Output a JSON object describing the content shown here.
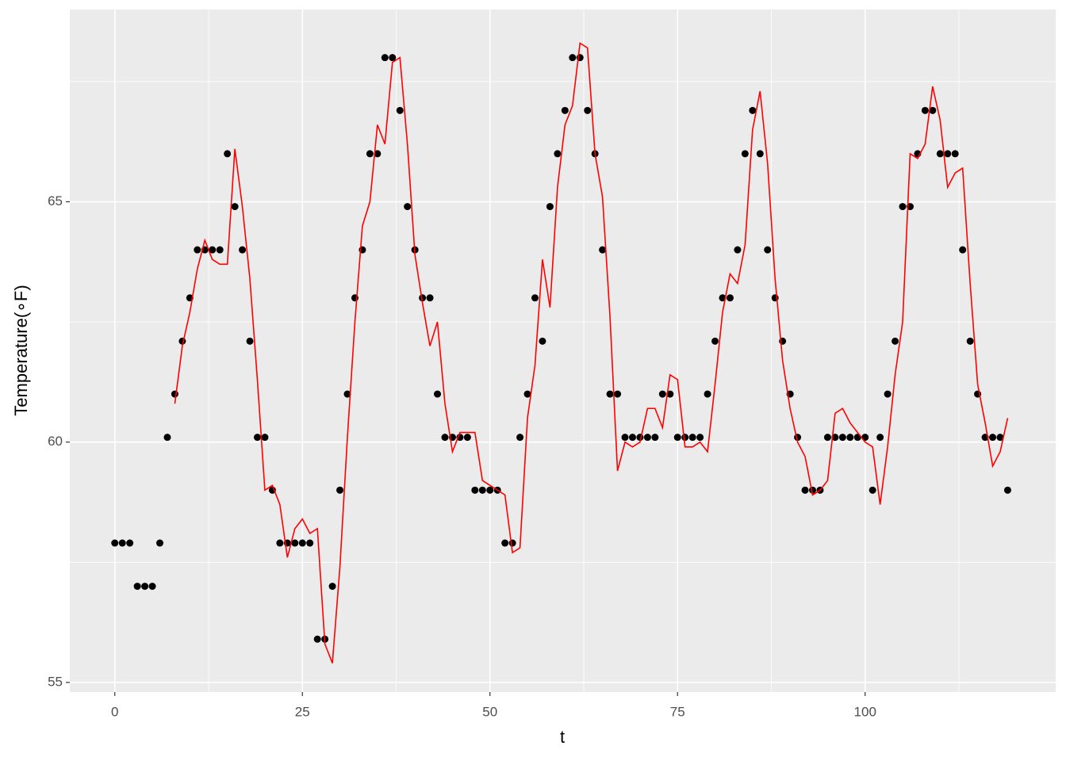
{
  "chart_data": {
    "type": "scatter",
    "xlabel": "t",
    "ylabel": "Temperature(∘F)",
    "x": [
      0,
      1,
      2,
      3,
      4,
      5,
      6,
      7,
      8,
      9,
      10,
      11,
      12,
      13,
      14,
      15,
      16,
      17,
      18,
      19,
      20,
      21,
      22,
      23,
      24,
      25,
      26,
      27,
      28,
      29,
      30,
      31,
      32,
      33,
      34,
      35,
      36,
      37,
      38,
      39,
      40,
      41,
      42,
      43,
      44,
      45,
      46,
      47,
      48,
      49,
      50,
      51,
      52,
      53,
      54,
      55,
      56,
      57,
      58,
      59,
      60,
      61,
      62,
      63,
      64,
      65,
      66,
      67,
      68,
      69,
      70,
      71,
      72,
      73,
      74,
      75,
      76,
      77,
      78,
      79,
      80,
      81,
      82,
      83,
      84,
      85,
      86,
      87,
      88,
      89,
      90,
      91,
      92,
      93,
      94,
      95,
      96,
      97,
      98,
      99,
      100,
      101,
      102,
      103,
      104,
      105,
      106,
      107,
      108,
      109,
      110,
      111,
      112,
      113,
      114,
      115,
      116,
      117,
      118,
      119
    ],
    "series": [
      {
        "color": "#000000",
        "style": "point",
        "values": [
          57.9,
          57.9,
          57.9,
          57.0,
          57.0,
          57.0,
          57.9,
          60.1,
          61.0,
          62.1,
          63.0,
          64.0,
          64.0,
          64.0,
          64.0,
          66.0,
          64.9,
          64.0,
          62.1,
          60.1,
          60.1,
          59.0,
          57.9,
          57.9,
          57.9,
          57.9,
          57.9,
          55.9,
          55.9,
          57.0,
          59.0,
          61.0,
          63.0,
          64.0,
          66.0,
          66.0,
          68.0,
          68.0,
          66.9,
          64.9,
          64.0,
          63.0,
          63.0,
          61.0,
          60.1,
          60.1,
          60.1,
          60.1,
          59.0,
          59.0,
          59.0,
          59.0,
          57.9,
          57.9,
          60.1,
          61.0,
          63.0,
          62.1,
          64.9,
          66.0,
          66.9,
          68.0,
          68.0,
          66.9,
          66.0,
          64.0,
          61.0,
          61.0,
          60.1,
          60.1,
          60.1,
          60.1,
          60.1,
          61.0,
          61.0,
          60.1,
          60.1,
          60.1,
          60.1,
          61.0,
          62.1,
          63.0,
          63.0,
          64.0,
          66.0,
          66.9,
          66.0,
          64.0,
          63.0,
          62.1,
          61.0,
          60.1,
          59.0,
          59.0,
          59.0,
          60.1,
          60.1,
          60.1,
          60.1,
          60.1,
          60.1,
          59.0,
          60.1,
          61.0,
          62.1,
          64.9,
          64.9,
          66.0,
          66.9,
          66.9,
          66.0,
          66.0,
          66.0,
          64.0,
          62.1,
          61.0,
          60.1,
          60.1,
          60.1,
          59.0
        ]
      },
      {
        "color": "#ff0000",
        "style": "line",
        "values": [
          null,
          null,
          null,
          null,
          null,
          null,
          null,
          null,
          60.8,
          62.0,
          62.7,
          63.6,
          64.2,
          63.8,
          63.7,
          63.7,
          66.1,
          64.9,
          63.4,
          61.3,
          59.0,
          59.1,
          58.7,
          57.6,
          58.2,
          58.4,
          58.1,
          58.2,
          55.8,
          55.4,
          57.4,
          60.1,
          62.5,
          64.5,
          65.0,
          66.6,
          66.2,
          67.9,
          68.0,
          66.2,
          63.9,
          62.9,
          62.0,
          62.5,
          60.8,
          59.8,
          60.2,
          60.2,
          60.2,
          59.2,
          59.1,
          59.0,
          58.9,
          57.7,
          57.8,
          60.5,
          61.6,
          63.8,
          62.8,
          65.3,
          66.6,
          67.0,
          68.3,
          68.2,
          66.0,
          65.1,
          62.6,
          59.4,
          60.0,
          59.9,
          60.0,
          60.7,
          60.7,
          60.3,
          61.4,
          61.3,
          59.9,
          59.9,
          60.0,
          59.8,
          61.2,
          62.7,
          63.5,
          63.3,
          64.1,
          66.5,
          67.3,
          65.8,
          63.4,
          61.7,
          60.7,
          60.0,
          59.7,
          58.9,
          59.0,
          59.2,
          60.6,
          60.7,
          60.4,
          60.2,
          60.0,
          59.9,
          58.7,
          59.9,
          61.4,
          62.5,
          66.0,
          65.9,
          66.2,
          67.4,
          66.7,
          65.3,
          65.6,
          65.7,
          63.3,
          61.2,
          60.4,
          59.5,
          59.8,
          60.5
        ]
      }
    ],
    "xlim": [
      -6.0,
      125.4
    ],
    "ylim": [
      54.8,
      69.0
    ],
    "xticks": [
      0,
      25,
      50,
      75,
      100
    ],
    "yticks": [
      55,
      60,
      65
    ],
    "minor_xticks": [
      12.5,
      37.5,
      62.5,
      87.5,
      112.5
    ],
    "minor_yticks": [
      57.5,
      62.5,
      67.5
    ],
    "grid": true,
    "panel_color": "#ebebeb"
  }
}
